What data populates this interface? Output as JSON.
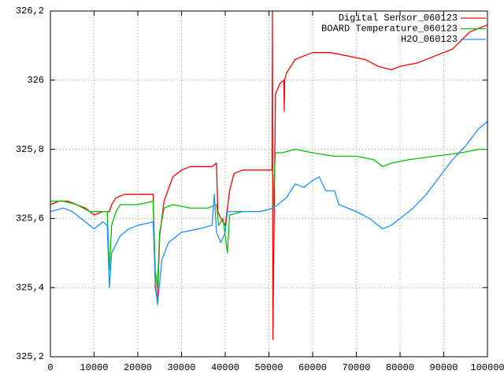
{
  "chart_data": {
    "type": "line",
    "xlim": [
      0,
      100000
    ],
    "xticks": [
      0,
      10000,
      20000,
      30000,
      40000,
      50000,
      60000,
      70000,
      80000,
      90000,
      100000
    ],
    "ylim": [
      325.2,
      326.2
    ],
    "yticks": [
      {
        "value": 325.2,
        "label": "325,2"
      },
      {
        "value": 325.4,
        "label": "325,4"
      },
      {
        "value": 325.6,
        "label": "325,6"
      },
      {
        "value": 325.8,
        "label": "325,8"
      },
      326,
      {
        "value": 326.2,
        "label": "326,2"
      }
    ],
    "grid": true,
    "legend": "top-right",
    "series": [
      {
        "name": "Digital Sensor_060123",
        "color": "#ff0000",
        "x": [
          0,
          2000,
          4000,
          6000,
          8000,
          10000,
          12000,
          13500,
          14000,
          15000,
          17000,
          20000,
          23500,
          24000,
          24500,
          25000,
          26000,
          28000,
          30000,
          32000,
          35000,
          37000,
          38000,
          38300,
          39000,
          40000,
          41000,
          42000,
          44000,
          46000,
          50000,
          50700,
          50800,
          50900,
          51500,
          52500,
          53400,
          53500,
          53600,
          54000,
          56000,
          58000,
          60000,
          64000,
          68000,
          72000,
          75000,
          78000,
          80000,
          84000,
          88000,
          92000,
          96000,
          100000
        ],
        "values": [
          325.64,
          325.65,
          325.65,
          325.64,
          325.63,
          325.61,
          325.62,
          325.62,
          325.64,
          325.66,
          325.67,
          325.67,
          325.67,
          325.4,
          325.36,
          325.55,
          325.65,
          325.72,
          325.74,
          325.75,
          325.75,
          325.75,
          325.76,
          325.62,
          325.6,
          325.58,
          325.68,
          325.73,
          325.74,
          325.74,
          325.74,
          325.74,
          326.2,
          325.25,
          325.96,
          325.99,
          326.0,
          325.91,
          326.0,
          326.02,
          326.06,
          326.07,
          326.08,
          326.08,
          326.07,
          326.06,
          326.04,
          326.03,
          326.04,
          326.05,
          326.07,
          326.09,
          326.14,
          326.16
        ]
      },
      {
        "name": "BOARD Temperature_060123",
        "color": "#00c000",
        "x": [
          0,
          3000,
          6000,
          9000,
          11000,
          13000,
          13500,
          14000,
          15000,
          16000,
          20000,
          23500,
          24000,
          24500,
          25000,
          26000,
          28000,
          32000,
          36000,
          38000,
          38500,
          39500,
          40500,
          41000,
          44000,
          48000,
          51000,
          51200,
          51500,
          53000,
          56000,
          60000,
          65000,
          70000,
          74000,
          76000,
          78000,
          82000,
          88000,
          94000,
          98000,
          100000
        ],
        "values": [
          325.65,
          325.65,
          325.64,
          325.62,
          325.62,
          325.62,
          325.45,
          325.58,
          325.62,
          325.64,
          325.64,
          325.65,
          325.45,
          325.4,
          325.56,
          325.63,
          325.64,
          325.63,
          325.63,
          325.64,
          325.58,
          325.6,
          325.5,
          325.61,
          325.62,
          325.62,
          325.63,
          325.72,
          325.79,
          325.79,
          325.8,
          325.79,
          325.78,
          325.78,
          325.77,
          325.75,
          325.76,
          325.77,
          325.78,
          325.79,
          325.8,
          325.8
        ]
      },
      {
        "name": "H2O_060123",
        "color": "#1e90ff",
        "x": [
          0,
          3000,
          5000,
          7000,
          9000,
          10000,
          12000,
          13000,
          13500,
          14000,
          16000,
          18000,
          20000,
          23500,
          24000,
          24500,
          25500,
          27000,
          30000,
          34000,
          37000,
          37500,
          38000,
          39000,
          40000,
          40500,
          44000,
          48000,
          51000,
          52000,
          54000,
          56000,
          58000,
          60000,
          61500,
          63000,
          65000,
          66000,
          68000,
          70000,
          73000,
          76000,
          78000,
          80000,
          83000,
          86000,
          89000,
          92000,
          95000,
          98000,
          100000
        ],
        "values": [
          325.62,
          325.63,
          325.62,
          325.6,
          325.58,
          325.57,
          325.59,
          325.58,
          325.4,
          325.5,
          325.55,
          325.57,
          325.58,
          325.59,
          325.42,
          325.35,
          325.48,
          325.53,
          325.56,
          325.57,
          325.58,
          325.67,
          325.56,
          325.53,
          325.56,
          325.62,
          325.62,
          325.62,
          325.63,
          325.64,
          325.66,
          325.7,
          325.69,
          325.71,
          325.72,
          325.68,
          325.68,
          325.64,
          325.63,
          325.62,
          325.6,
          325.57,
          325.58,
          325.6,
          325.63,
          325.67,
          325.72,
          325.77,
          325.81,
          325.86,
          325.88
        ]
      }
    ]
  }
}
